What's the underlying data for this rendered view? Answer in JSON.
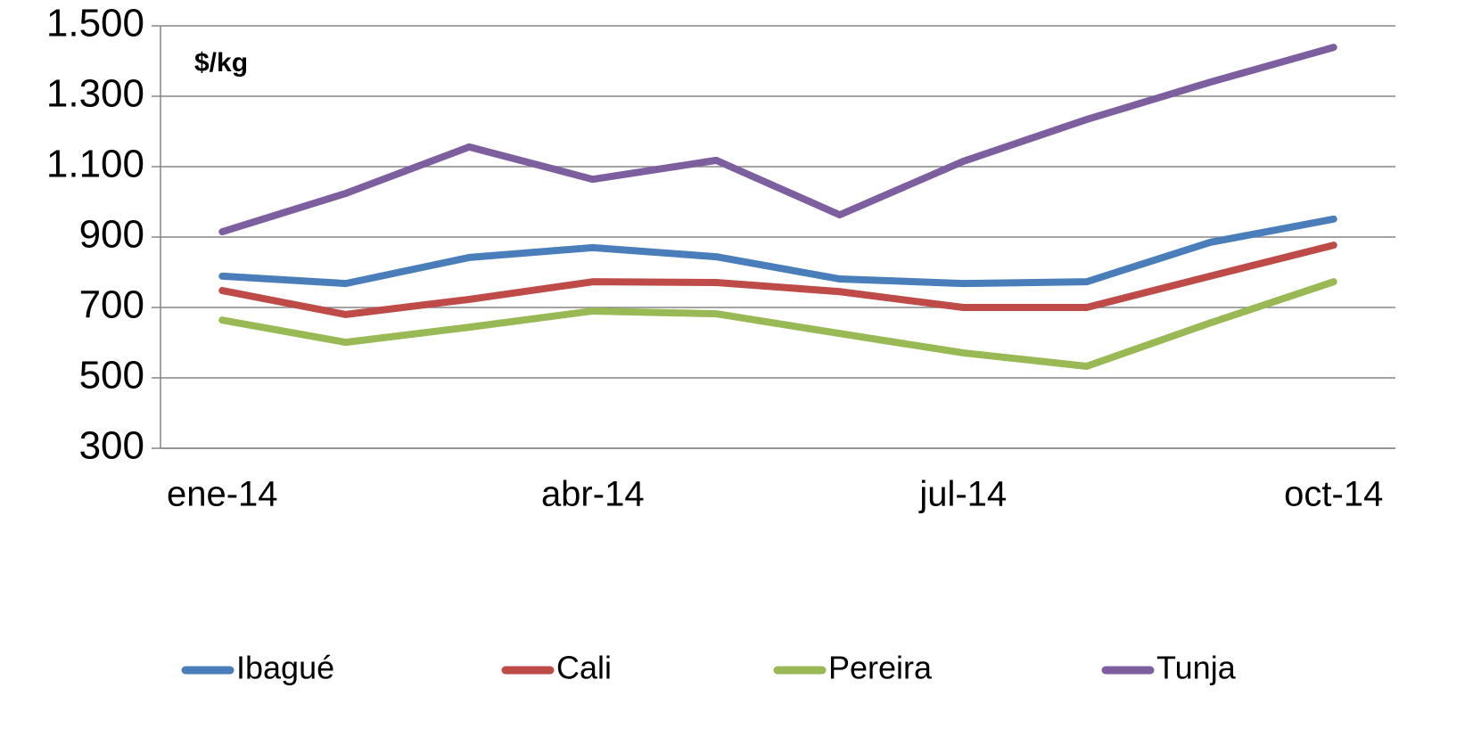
{
  "chart_data": {
    "type": "line",
    "unit_label": "$/kg",
    "categories": [
      "ene-14",
      null,
      null,
      "abr-14",
      null,
      null,
      "jul-14",
      null,
      null,
      "oct-14"
    ],
    "series": [
      {
        "name": "Ibagué",
        "color": "#4a7ebb",
        "values": [
          789,
          768,
          842,
          870,
          844,
          781,
          768,
          773,
          885,
          951
        ]
      },
      {
        "name": "Cali",
        "color": "#be4b48",
        "values": [
          748,
          680,
          723,
          773,
          771,
          745,
          700,
          700,
          789,
          877
        ]
      },
      {
        "name": "Pereira",
        "color": "#98b954",
        "values": [
          664,
          601,
          644,
          690,
          682,
          626,
          571,
          533,
          656,
          773
        ]
      },
      {
        "name": "Tunja",
        "color": "#7d5fa0",
        "values": [
          915,
          1024,
          1156,
          1064,
          1118,
          963,
          1115,
          1234,
          1340,
          1439
        ]
      }
    ],
    "ylim": [
      300,
      1500
    ],
    "yticks": [
      300,
      500,
      700,
      900,
      {
        "value": 1100,
        "label": "1.100"
      },
      {
        "value": 1300,
        "label": "1.300"
      },
      {
        "value": 1500,
        "label": "1.500"
      }
    ],
    "grid": true,
    "legend": "bottom"
  }
}
